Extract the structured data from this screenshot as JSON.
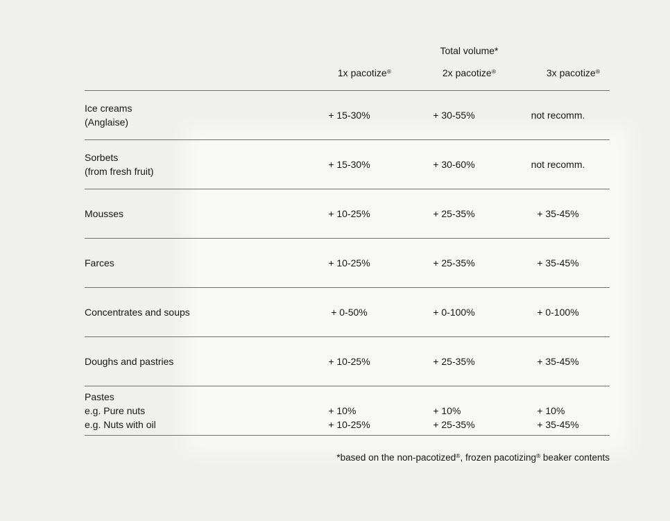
{
  "page": {
    "background": "#f0f0ee",
    "text_color": "#161616",
    "line_color": "#6f6f6f"
  },
  "table": {
    "group_header": "Total volume*",
    "column_headers": [
      "1x pacotize®",
      "2x pacotize®",
      "3x pacotize®"
    ],
    "rows": [
      {
        "category": [
          "Ice creams",
          "(Anglaise)"
        ],
        "values": [
          [
            "+ 15-30%"
          ],
          [
            "+ 30-55%"
          ],
          [
            "not recomm."
          ]
        ]
      },
      {
        "category": [
          "Sorbets",
          "(from fresh fruit)"
        ],
        "values": [
          [
            "+ 15-30%"
          ],
          [
            "+ 30-60%"
          ],
          [
            "not recomm."
          ]
        ]
      },
      {
        "category": [
          "Mousses"
        ],
        "values": [
          [
            "+ 10-25%"
          ],
          [
            "+ 25-35%"
          ],
          [
            "+ 35-45%"
          ]
        ]
      },
      {
        "category": [
          "Farces"
        ],
        "values": [
          [
            "+ 10-25%"
          ],
          [
            "+ 25-35%"
          ],
          [
            "+ 35-45%"
          ]
        ]
      },
      {
        "category": [
          "Concentrates and soups"
        ],
        "values": [
          [
            "+ 0-50%"
          ],
          [
            "+ 0-100%"
          ],
          [
            "+ 0-100%"
          ]
        ]
      },
      {
        "category": [
          "Doughs and pastries"
        ],
        "values": [
          [
            "+ 10-25%"
          ],
          [
            "+ 25-35%"
          ],
          [
            "+ 35-45%"
          ]
        ]
      },
      {
        "category": [
          "Pastes",
          "e.g. Pure nuts",
          "e.g. Nuts with oil"
        ],
        "values": [
          [
            "",
            "+ 10%",
            "+ 10-25%"
          ],
          [
            "",
            "+ 10%",
            "+ 25-35%"
          ],
          [
            "",
            "+ 10%",
            "+ 35-45%"
          ]
        ]
      }
    ],
    "footnote": "*based on the non-pacotized®, frozen pacotizing® beaker contents"
  }
}
